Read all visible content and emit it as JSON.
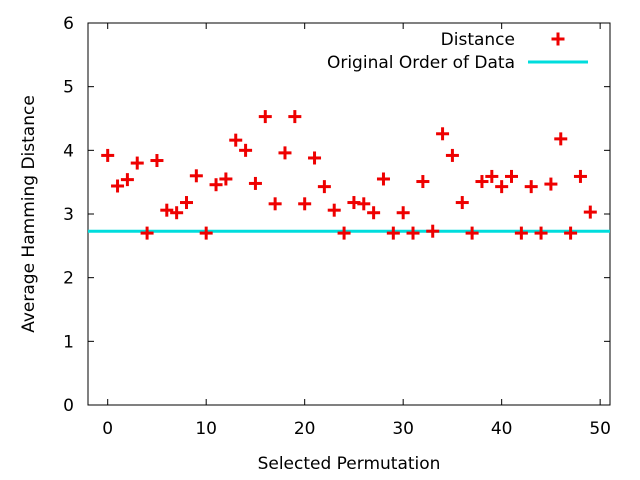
{
  "chart_data": {
    "type": "scatter",
    "title": "",
    "xlabel": "Selected Permutation",
    "ylabel": "Average Hamming Distance",
    "xlim": [
      -2,
      51
    ],
    "ylim": [
      0,
      6
    ],
    "xticks": [
      0,
      10,
      20,
      30,
      40,
      50
    ],
    "yticks": [
      0,
      1,
      2,
      3,
      4,
      5,
      6
    ],
    "grid": false,
    "legend_position": "top-right",
    "series": [
      {
        "name": "Distance",
        "marker": "plus",
        "color": "#ee0000",
        "x": [
          0,
          1,
          2,
          3,
          4,
          5,
          6,
          7,
          8,
          9,
          10,
          11,
          12,
          13,
          14,
          15,
          16,
          17,
          18,
          19,
          20,
          21,
          22,
          23,
          24,
          25,
          26,
          27,
          28,
          29,
          30,
          31,
          32,
          33,
          34,
          35,
          36,
          37,
          38,
          39,
          40,
          41,
          42,
          43,
          44,
          45,
          46,
          47,
          48,
          49
        ],
        "y": [
          3.92,
          3.44,
          3.54,
          3.8,
          2.7,
          3.84,
          3.06,
          3.02,
          3.18,
          3.6,
          2.7,
          3.46,
          3.55,
          4.16,
          4.0,
          3.48,
          4.53,
          3.16,
          3.96,
          4.53,
          3.16,
          3.88,
          3.43,
          3.06,
          2.7,
          3.18,
          3.16,
          3.02,
          3.55,
          2.7,
          3.02,
          2.7,
          3.51,
          2.73,
          4.26,
          3.92,
          3.18,
          2.7,
          3.51,
          3.59,
          3.43,
          3.59,
          2.7,
          3.43,
          2.7,
          3.47,
          4.18,
          2.7,
          3.59,
          3.03
        ]
      },
      {
        "name": "Original Order of Data",
        "type": "hline",
        "color": "#00dddd",
        "y": 2.73
      }
    ]
  }
}
